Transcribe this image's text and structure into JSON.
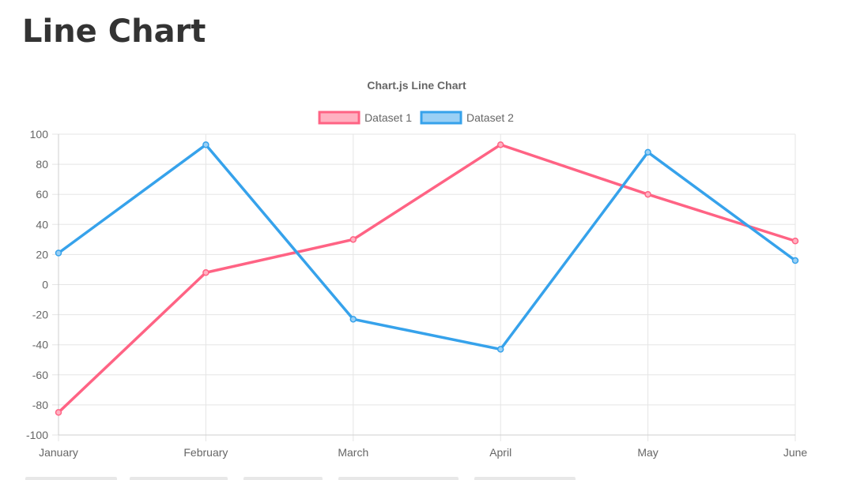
{
  "page": {
    "title": "Line Chart"
  },
  "chart_data": {
    "type": "line",
    "title": "Chart.js Line Chart",
    "categories": [
      "January",
      "February",
      "March",
      "April",
      "May",
      "June"
    ],
    "series": [
      {
        "name": "Dataset 1",
        "values": [
          -85,
          8,
          30,
          93,
          60,
          29
        ],
        "color": "#ff6384",
        "fill": "#ffb1c1"
      },
      {
        "name": "Dataset 2",
        "values": [
          21,
          93,
          -23,
          -43,
          88,
          16
        ],
        "color": "#36a2eb",
        "fill": "#9ad0f5"
      }
    ],
    "ylim": [
      -100,
      100
    ],
    "yticks": [
      100,
      80,
      60,
      40,
      20,
      0,
      -20,
      -40,
      -60,
      -80,
      -100
    ],
    "grid": true,
    "legend": "top"
  }
}
